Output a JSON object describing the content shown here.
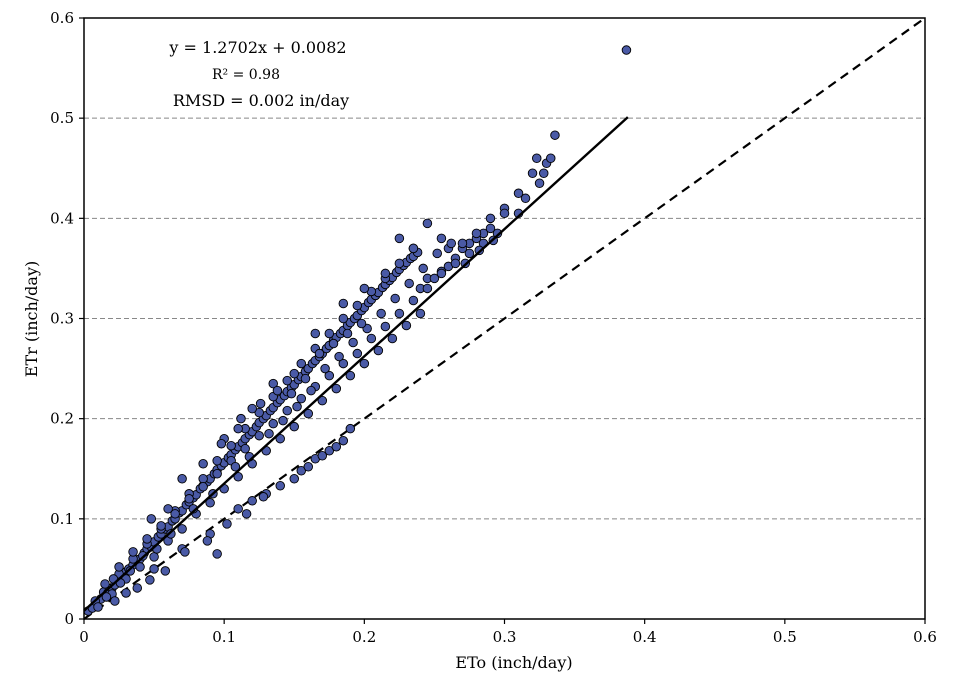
{
  "chart_data": {
    "type": "scatter",
    "title": "",
    "xlabel": "ETo (inch/day)",
    "ylabel": "ETr (inch/day)",
    "xlim": [
      0,
      0.6
    ],
    "ylim": [
      0,
      0.6
    ],
    "xticks": [
      "0",
      "0.1",
      "0.2",
      "0.3",
      "0.4",
      "0.5",
      "0.6"
    ],
    "yticks": [
      "0",
      "0.1",
      "0.2",
      "0.3",
      "0.4",
      "0.5",
      "0.6"
    ],
    "grid": "horizontal-dashed",
    "legend": "none",
    "annotations": {
      "equation": "y = 1.2702x + 0.0082",
      "r2": "R² = 0.98",
      "rmsd": "RMSD = 0.002 in/day"
    },
    "fit_line": {
      "slope": 1.2702,
      "intercept": 0.0082,
      "x_range": [
        0,
        0.388
      ]
    },
    "reference_line": {
      "label": "1:1",
      "x_range": [
        0,
        0.6
      ]
    },
    "marker_color": "#4a5aa6",
    "series": [
      {
        "points": [
          [
            0.003,
            0.008
          ],
          [
            0.006,
            0.011
          ],
          [
            0.009,
            0.017
          ],
          [
            0.012,
            0.02
          ],
          [
            0.014,
            0.027
          ],
          [
            0.017,
            0.026
          ],
          [
            0.02,
            0.031
          ],
          [
            0.022,
            0.034
          ],
          [
            0.025,
            0.04
          ],
          [
            0.028,
            0.043
          ],
          [
            0.03,
            0.047
          ],
          [
            0.032,
            0.05
          ],
          [
            0.035,
            0.054
          ],
          [
            0.038,
            0.059
          ],
          [
            0.04,
            0.06
          ],
          [
            0.043,
            0.066
          ],
          [
            0.045,
            0.07
          ],
          [
            0.048,
            0.072
          ],
          [
            0.05,
            0.077
          ],
          [
            0.053,
            0.082
          ],
          [
            0.055,
            0.085
          ],
          [
            0.058,
            0.09
          ],
          [
            0.06,
            0.092
          ],
          [
            0.063,
            0.098
          ],
          [
            0.065,
            0.1
          ],
          [
            0.068,
            0.106
          ],
          [
            0.07,
            0.108
          ],
          [
            0.073,
            0.114
          ],
          [
            0.075,
            0.117
          ],
          [
            0.078,
            0.121
          ],
          [
            0.08,
            0.124
          ],
          [
            0.083,
            0.13
          ],
          [
            0.085,
            0.133
          ],
          [
            0.088,
            0.137
          ],
          [
            0.09,
            0.14
          ],
          [
            0.093,
            0.145
          ],
          [
            0.095,
            0.149
          ],
          [
            0.098,
            0.153
          ],
          [
            0.1,
            0.156
          ],
          [
            0.103,
            0.161
          ],
          [
            0.105,
            0.164
          ],
          [
            0.108,
            0.169
          ],
          [
            0.11,
            0.172
          ],
          [
            0.113,
            0.176
          ],
          [
            0.115,
            0.18
          ],
          [
            0.118,
            0.184
          ],
          [
            0.12,
            0.187
          ],
          [
            0.123,
            0.192
          ],
          [
            0.125,
            0.196
          ],
          [
            0.128,
            0.2
          ],
          [
            0.13,
            0.203
          ],
          [
            0.133,
            0.208
          ],
          [
            0.135,
            0.211
          ],
          [
            0.138,
            0.216
          ],
          [
            0.14,
            0.219
          ],
          [
            0.143,
            0.223
          ],
          [
            0.145,
            0.227
          ],
          [
            0.148,
            0.231
          ],
          [
            0.15,
            0.234
          ],
          [
            0.153,
            0.239
          ],
          [
            0.155,
            0.242
          ],
          [
            0.158,
            0.247
          ],
          [
            0.16,
            0.25
          ],
          [
            0.163,
            0.255
          ],
          [
            0.165,
            0.258
          ],
          [
            0.168,
            0.262
          ],
          [
            0.17,
            0.265
          ],
          [
            0.173,
            0.27
          ],
          [
            0.175,
            0.273
          ],
          [
            0.178,
            0.278
          ],
          [
            0.18,
            0.281
          ],
          [
            0.183,
            0.285
          ],
          [
            0.185,
            0.288
          ],
          [
            0.188,
            0.293
          ],
          [
            0.19,
            0.296
          ],
          [
            0.193,
            0.3
          ],
          [
            0.195,
            0.303
          ],
          [
            0.198,
            0.308
          ],
          [
            0.2,
            0.311
          ],
          [
            0.203,
            0.316
          ],
          [
            0.205,
            0.319
          ],
          [
            0.208,
            0.323
          ],
          [
            0.21,
            0.326
          ],
          [
            0.213,
            0.331
          ],
          [
            0.215,
            0.334
          ],
          [
            0.218,
            0.338
          ],
          [
            0.22,
            0.341
          ],
          [
            0.223,
            0.346
          ],
          [
            0.225,
            0.349
          ],
          [
            0.228,
            0.353
          ],
          [
            0.23,
            0.356
          ],
          [
            0.233,
            0.36
          ],
          [
            0.235,
            0.362
          ],
          [
            0.238,
            0.366
          ],
          [
            0.24,
            0.33
          ],
          [
            0.245,
            0.34
          ],
          [
            0.25,
            0.34
          ],
          [
            0.255,
            0.347
          ],
          [
            0.26,
            0.352
          ],
          [
            0.265,
            0.36
          ],
          [
            0.27,
            0.37
          ],
          [
            0.275,
            0.375
          ],
          [
            0.28,
            0.38
          ],
          [
            0.285,
            0.385
          ],
          [
            0.29,
            0.39
          ],
          [
            0.02,
            0.025
          ],
          [
            0.03,
            0.04
          ],
          [
            0.04,
            0.052
          ],
          [
            0.05,
            0.062
          ],
          [
            0.06,
            0.078
          ],
          [
            0.07,
            0.09
          ],
          [
            0.08,
            0.105
          ],
          [
            0.09,
            0.116
          ],
          [
            0.1,
            0.13
          ],
          [
            0.11,
            0.142
          ],
          [
            0.12,
            0.155
          ],
          [
            0.13,
            0.168
          ],
          [
            0.14,
            0.18
          ],
          [
            0.15,
            0.192
          ],
          [
            0.16,
            0.205
          ],
          [
            0.17,
            0.218
          ],
          [
            0.18,
            0.23
          ],
          [
            0.19,
            0.243
          ],
          [
            0.2,
            0.255
          ],
          [
            0.21,
            0.268
          ],
          [
            0.22,
            0.28
          ],
          [
            0.23,
            0.293
          ],
          [
            0.24,
            0.305
          ],
          [
            0.025,
            0.045
          ],
          [
            0.035,
            0.06
          ],
          [
            0.045,
            0.075
          ],
          [
            0.055,
            0.09
          ],
          [
            0.065,
            0.108
          ],
          [
            0.075,
            0.125
          ],
          [
            0.085,
            0.14
          ],
          [
            0.095,
            0.158
          ],
          [
            0.105,
            0.173
          ],
          [
            0.115,
            0.19
          ],
          [
            0.125,
            0.206
          ],
          [
            0.135,
            0.222
          ],
          [
            0.145,
            0.238
          ],
          [
            0.155,
            0.255
          ],
          [
            0.165,
            0.27
          ],
          [
            0.175,
            0.285
          ],
          [
            0.185,
            0.3
          ],
          [
            0.195,
            0.313
          ],
          [
            0.205,
            0.327
          ],
          [
            0.215,
            0.34
          ],
          [
            0.225,
            0.355
          ],
          [
            0.235,
            0.37
          ],
          [
            0.05,
            0.05
          ],
          [
            0.07,
            0.07
          ],
          [
            0.09,
            0.085
          ],
          [
            0.095,
            0.065
          ],
          [
            0.11,
            0.11
          ],
          [
            0.12,
            0.118
          ],
          [
            0.13,
            0.125
          ],
          [
            0.14,
            0.133
          ],
          [
            0.15,
            0.14
          ],
          [
            0.155,
            0.148
          ],
          [
            0.16,
            0.152
          ],
          [
            0.165,
            0.16
          ],
          [
            0.17,
            0.163
          ],
          [
            0.175,
            0.168
          ],
          [
            0.18,
            0.172
          ],
          [
            0.185,
            0.178
          ],
          [
            0.19,
            0.19
          ],
          [
            0.022,
            0.018
          ],
          [
            0.03,
            0.026
          ],
          [
            0.038,
            0.031
          ],
          [
            0.047,
            0.039
          ],
          [
            0.058,
            0.048
          ],
          [
            0.072,
            0.067
          ],
          [
            0.088,
            0.078
          ],
          [
            0.102,
            0.095
          ],
          [
            0.116,
            0.105
          ],
          [
            0.128,
            0.122
          ],
          [
            0.048,
            0.1
          ],
          [
            0.06,
            0.11
          ],
          [
            0.07,
            0.14
          ],
          [
            0.085,
            0.155
          ],
          [
            0.1,
            0.18
          ],
          [
            0.11,
            0.19
          ],
          [
            0.12,
            0.21
          ],
          [
            0.135,
            0.235
          ],
          [
            0.15,
            0.245
          ],
          [
            0.165,
            0.285
          ],
          [
            0.185,
            0.315
          ],
          [
            0.2,
            0.33
          ],
          [
            0.215,
            0.345
          ],
          [
            0.225,
            0.38
          ],
          [
            0.235,
            0.37
          ],
          [
            0.245,
            0.395
          ],
          [
            0.255,
            0.38
          ],
          [
            0.26,
            0.37
          ],
          [
            0.27,
            0.375
          ],
          [
            0.28,
            0.385
          ],
          [
            0.29,
            0.4
          ],
          [
            0.3,
            0.41
          ],
          [
            0.31,
            0.405
          ],
          [
            0.31,
            0.425
          ],
          [
            0.315,
            0.42
          ],
          [
            0.32,
            0.445
          ],
          [
            0.323,
            0.46
          ],
          [
            0.325,
            0.435
          ],
          [
            0.328,
            0.445
          ],
          [
            0.33,
            0.455
          ],
          [
            0.333,
            0.46
          ],
          [
            0.336,
            0.483
          ],
          [
            0.387,
            0.568
          ],
          [
            0.3,
            0.405
          ],
          [
            0.295,
            0.385
          ],
          [
            0.285,
            0.375
          ],
          [
            0.275,
            0.365
          ],
          [
            0.265,
            0.355
          ],
          [
            0.255,
            0.345
          ],
          [
            0.245,
            0.33
          ],
          [
            0.235,
            0.318
          ],
          [
            0.225,
            0.305
          ],
          [
            0.215,
            0.292
          ],
          [
            0.205,
            0.28
          ],
          [
            0.195,
            0.265
          ],
          [
            0.185,
            0.255
          ],
          [
            0.175,
            0.243
          ],
          [
            0.165,
            0.232
          ],
          [
            0.155,
            0.22
          ],
          [
            0.145,
            0.208
          ],
          [
            0.135,
            0.195
          ],
          [
            0.125,
            0.183
          ],
          [
            0.115,
            0.17
          ],
          [
            0.105,
            0.158
          ],
          [
            0.095,
            0.145
          ],
          [
            0.085,
            0.132
          ],
          [
            0.075,
            0.12
          ],
          [
            0.065,
            0.105
          ],
          [
            0.055,
            0.093
          ],
          [
            0.045,
            0.08
          ],
          [
            0.035,
            0.067
          ],
          [
            0.025,
            0.052
          ],
          [
            0.015,
            0.035
          ],
          [
            0.008,
            0.018
          ],
          [
            0.01,
            0.012
          ],
          [
            0.016,
            0.022
          ],
          [
            0.021,
            0.04
          ],
          [
            0.026,
            0.036
          ],
          [
            0.033,
            0.048
          ],
          [
            0.042,
            0.063
          ],
          [
            0.052,
            0.07
          ],
          [
            0.062,
            0.085
          ],
          [
            0.078,
            0.11
          ],
          [
            0.092,
            0.125
          ],
          [
            0.108,
            0.152
          ],
          [
            0.118,
            0.162
          ],
          [
            0.132,
            0.185
          ],
          [
            0.142,
            0.198
          ],
          [
            0.152,
            0.212
          ],
          [
            0.162,
            0.228
          ],
          [
            0.172,
            0.25
          ],
          [
            0.182,
            0.262
          ],
          [
            0.192,
            0.276
          ],
          [
            0.202,
            0.29
          ],
          [
            0.212,
            0.305
          ],
          [
            0.222,
            0.32
          ],
          [
            0.232,
            0.335
          ],
          [
            0.242,
            0.35
          ],
          [
            0.252,
            0.365
          ],
          [
            0.262,
            0.375
          ],
          [
            0.272,
            0.355
          ],
          [
            0.282,
            0.368
          ],
          [
            0.292,
            0.378
          ],
          [
            0.098,
            0.175
          ],
          [
            0.112,
            0.2
          ],
          [
            0.126,
            0.215
          ],
          [
            0.138,
            0.228
          ],
          [
            0.148,
            0.225
          ],
          [
            0.158,
            0.24
          ],
          [
            0.168,
            0.265
          ],
          [
            0.178,
            0.275
          ],
          [
            0.188,
            0.285
          ],
          [
            0.198,
            0.295
          ]
        ]
      }
    ]
  }
}
